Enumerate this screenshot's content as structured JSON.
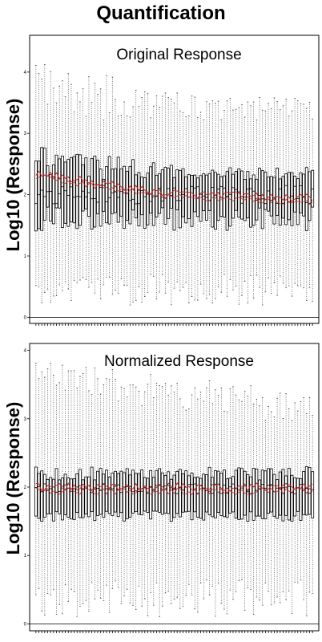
{
  "figure_title": "Quantification",
  "chart_data": [
    {
      "type": "boxplot",
      "title": "Original Response",
      "ylabel": "Log10 (Response)",
      "xlabel": "",
      "ylim": [
        -0.1,
        4.6
      ],
      "y_ticks": [
        0,
        1,
        2,
        3,
        4
      ],
      "reference_line_y": 0,
      "n_samples": 95,
      "summary": {
        "q1_range": [
          1.4,
          1.8
        ],
        "median_range": [
          1.85,
          2.15
        ],
        "q3_range": [
          2.25,
          2.8
        ],
        "whisker_low_range": [
          0.2,
          0.7
        ],
        "whisker_high_range": [
          3.2,
          4.2
        ]
      },
      "mean_trend": [
        2.35,
        2.25,
        2.15,
        2.05,
        2.0,
        2.0,
        1.95,
        1.95
      ],
      "mean_color": "#d02020"
    },
    {
      "type": "boxplot",
      "title": "Normalized Response",
      "ylabel": "Log10 (Response)",
      "xlabel": "",
      "ylim": [
        -0.1,
        4.1
      ],
      "y_ticks": [
        0,
        1,
        2,
        3,
        4
      ],
      "reference_line_y": 0,
      "n_samples": 95,
      "summary": {
        "q1_range": [
          1.5,
          1.65
        ],
        "median_range": [
          1.9,
          2.05
        ],
        "q3_range": [
          2.3,
          2.45
        ],
        "whisker_low_range": [
          0.1,
          0.65
        ],
        "whisker_high_range": [
          3.35,
          3.85
        ]
      },
      "mean_trend": [
        2.0,
        2.0,
        2.0,
        2.0,
        2.0,
        2.0,
        2.0,
        2.0
      ],
      "mean_color": "#d02020"
    }
  ]
}
